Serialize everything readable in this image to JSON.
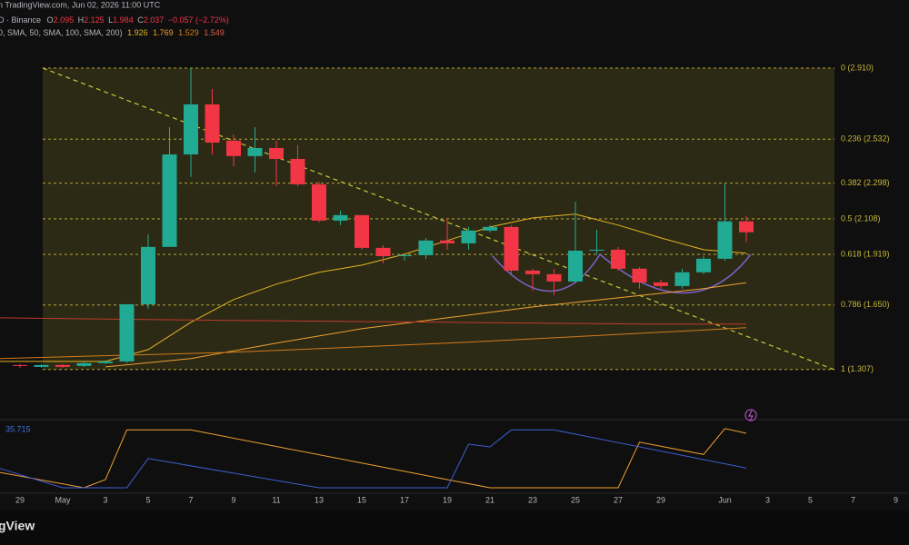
{
  "header": {
    "source": "n TradingView.com, Jun 02, 2026 11:00 UTC",
    "symbol": "D · Binance",
    "ohlc_labels": [
      "O",
      "H",
      "L",
      "C"
    ],
    "change": "−0.057 (−2.72%)",
    "studies": "0, SMA, 50, SMA, 100, SMA, 200)",
    "logo": "gView"
  },
  "chart_data": {
    "type": "candlestick",
    "x": [
      "2026-04-29",
      "2026-04-30",
      "2026-05-01",
      "2026-05-02",
      "2026-05-03",
      "2026-05-04",
      "2026-05-05",
      "2026-05-06",
      "2026-05-07",
      "2026-05-08",
      "2026-05-09",
      "2026-05-10",
      "2026-05-11",
      "2026-05-12",
      "2026-05-13",
      "2026-05-14",
      "2026-05-15",
      "2026-05-16",
      "2026-05-17",
      "2026-05-18",
      "2026-05-19",
      "2026-05-20",
      "2026-05-21",
      "2026-05-22",
      "2026-05-23",
      "2026-05-24",
      "2026-05-25",
      "2026-05-26",
      "2026-05-27",
      "2026-05-28",
      "2026-05-29",
      "2026-05-30",
      "2026-05-31",
      "2026-06-01",
      "2026-06-02"
    ],
    "open": [
      1.331,
      1.321,
      1.331,
      1.326,
      1.341,
      1.35,
      1.654,
      1.959,
      2.451,
      2.717,
      2.524,
      2.442,
      2.485,
      2.427,
      2.292,
      2.099,
      2.128,
      1.954,
      1.91,
      1.915,
      1.993,
      1.978,
      2.046,
      2.065,
      1.833,
      1.814,
      1.775,
      1.939,
      1.944,
      1.843,
      1.77,
      1.751,
      1.824,
      1.896,
      2.095
    ],
    "high": [
      1.336,
      1.336,
      1.336,
      1.346,
      1.355,
      1.654,
      2.026,
      2.596,
      2.91,
      2.799,
      2.557,
      2.596,
      2.524,
      2.5,
      2.306,
      2.152,
      2.128,
      1.968,
      1.92,
      2.007,
      2.113,
      2.065,
      2.075,
      2.075,
      1.843,
      1.843,
      2.2,
      2.05,
      1.958,
      1.852,
      1.785,
      1.843,
      1.91,
      2.297,
      2.125
    ],
    "low": [
      1.316,
      1.316,
      1.316,
      1.321,
      1.336,
      1.341,
      1.63,
      1.959,
      2.331,
      2.451,
      2.388,
      2.355,
      2.282,
      2.282,
      2.089,
      2.075,
      1.944,
      1.872,
      1.886,
      1.896,
      1.944,
      1.944,
      2.036,
      1.814,
      1.727,
      1.703,
      1.766,
      1.92,
      1.833,
      1.737,
      1.737,
      1.737,
      1.814,
      1.886,
      1.984
    ],
    "close": [
      1.326,
      1.331,
      1.321,
      1.341,
      1.35,
      1.654,
      1.959,
      2.451,
      2.717,
      2.514,
      2.442,
      2.485,
      2.427,
      2.292,
      2.099,
      2.128,
      1.954,
      1.91,
      1.915,
      1.993,
      1.978,
      2.046,
      2.065,
      1.833,
      1.814,
      1.775,
      1.939,
      1.944,
      1.843,
      1.77,
      1.751,
      1.824,
      1.896,
      2.095,
      2.037
    ],
    "up_color": "#22ab94",
    "down_color": "#f23645",
    "xlim": [
      "2026-04-28",
      "2026-06-10"
    ],
    "ylim": [
      1.05,
      3.19
    ],
    "xticks": [
      {
        "value": "2026-04-29",
        "label": "29"
      },
      {
        "value": "2026-05-01",
        "label": "May"
      },
      {
        "value": "2026-05-03",
        "label": "3"
      },
      {
        "value": "2026-05-05",
        "label": "5"
      },
      {
        "value": "2026-05-07",
        "label": "7"
      },
      {
        "value": "2026-05-09",
        "label": "9"
      },
      {
        "value": "2026-05-11",
        "label": "11"
      },
      {
        "value": "2026-05-13",
        "label": "13"
      },
      {
        "value": "2026-05-15",
        "label": "15"
      },
      {
        "value": "2026-05-17",
        "label": "17"
      },
      {
        "value": "2026-05-19",
        "label": "19"
      },
      {
        "value": "2026-05-21",
        "label": "21"
      },
      {
        "value": "2026-05-23",
        "label": "23"
      },
      {
        "value": "2026-05-25",
        "label": "25"
      },
      {
        "value": "2026-05-27",
        "label": "27"
      },
      {
        "value": "2026-05-29",
        "label": "29"
      },
      {
        "value": "2026-06-01",
        "label": "Jun"
      },
      {
        "value": "2026-06-03",
        "label": "3"
      },
      {
        "value": "2026-06-05",
        "label": "5"
      },
      {
        "value": "2026-06-07",
        "label": "7"
      },
      {
        "value": "2026-06-09",
        "label": "9"
      }
    ],
    "fib_color": "#c8b83a",
    "fib_levels": [
      {
        "value": 2.91,
        "label": "0 (2.910)"
      },
      {
        "value": 2.532,
        "label": "0.236 (2.532)"
      },
      {
        "value": 2.298,
        "label": "0.382 (2.298)"
      },
      {
        "value": 2.108,
        "label": "0.5 (2.108)"
      },
      {
        "value": 1.919,
        "label": "0.618 (1.919)"
      },
      {
        "value": 1.65,
        "label": "0.786 (1.650)"
      },
      {
        "value": 1.307,
        "label": "1 (1.307)"
      }
    ],
    "overlays": [
      {
        "color": "#e6b422",
        "x": [
          "2026-04-28",
          "2026-05-03",
          "2026-05-05",
          "2026-05-07",
          "2026-05-09",
          "2026-05-11",
          "2026-05-13",
          "2026-05-15",
          "2026-05-17",
          "2026-05-19",
          "2026-05-21",
          "2026-05-23",
          "2026-05-25",
          "2026-05-27",
          "2026-05-29",
          "2026-05-31",
          "2026-06-02"
        ],
        "values": [
          1.35,
          1.35,
          1.413,
          1.558,
          1.679,
          1.761,
          1.824,
          1.862,
          1.92,
          1.993,
          2.065,
          2.113,
          2.133,
          2.075,
          2.007,
          1.944,
          1.926
        ]
      },
      {
        "color": "#f0a030",
        "x": [
          "2026-05-03",
          "2026-05-07",
          "2026-05-11",
          "2026-05-15",
          "2026-05-19",
          "2026-05-23",
          "2026-05-27",
          "2026-05-31",
          "2026-06-02"
        ],
        "values": [
          1.321,
          1.365,
          1.447,
          1.524,
          1.582,
          1.64,
          1.688,
          1.737,
          1.769
        ]
      },
      {
        "color": "#d47a1a",
        "x": [
          "2026-04-28",
          "2026-05-09",
          "2026-05-19",
          "2026-05-29",
          "2026-06-02"
        ],
        "values": [
          1.365,
          1.399,
          1.447,
          1.505,
          1.529
        ]
      },
      {
        "color": "#c0392b",
        "x": [
          "2026-04-28",
          "2026-05-09",
          "2026-05-19",
          "2026-05-29",
          "2026-06-02"
        ],
        "values": [
          1.582,
          1.568,
          1.558,
          1.548,
          1.549
        ]
      }
    ],
    "indicator": {
      "label": "35.715",
      "ylim": [
        0,
        100
      ],
      "series": [
        {
          "color": "#f0a030",
          "x": [
            "2026-04-28",
            "2026-05-02",
            "2026-05-03",
            "2026-05-04",
            "2026-05-07",
            "2026-05-19",
            "2026-05-21",
            "2026-05-27",
            "2026-05-28",
            "2026-05-31",
            "2026-06-01",
            "2026-06-02"
          ],
          "values": [
            27,
            4,
            16,
            89,
            89,
            16,
            4,
            4,
            71,
            53,
            91,
            84
          ]
        },
        {
          "color": "#3d5fd0",
          "x": [
            "2026-04-28",
            "2026-05-01",
            "2026-05-04",
            "2026-05-05",
            "2026-05-13",
            "2026-05-19",
            "2026-05-20",
            "2026-05-21",
            "2026-05-22",
            "2026-05-24",
            "2026-06-02"
          ],
          "values": [
            33,
            4,
            4,
            47,
            4,
            4,
            68,
            64,
            89,
            89,
            33
          ]
        }
      ]
    }
  }
}
